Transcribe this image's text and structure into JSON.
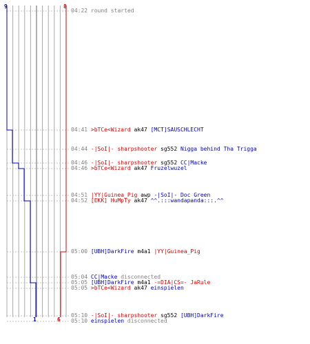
{
  "colors": {
    "t_team": "#0000b0",
    "ct_team": "#d00000",
    "time": "#808080",
    "grid": "#a8a8a8"
  },
  "counts": {
    "blue_top": "9",
    "red_top": "8",
    "blue_bottom": "1",
    "red_bottom": "6"
  },
  "events": [
    {
      "id": "e0",
      "time": "04:22",
      "segments": [
        {
          "text": "round started",
          "color": "gray"
        }
      ]
    },
    {
      "id": "e1",
      "time": "04:41",
      "segments": [
        {
          "text": ">bTCe<Wizard",
          "color": "red"
        },
        {
          "text": " ak47 ",
          "color": "black"
        },
        {
          "text": "[MCT]SAUSCHLECHT",
          "color": "blue"
        }
      ]
    },
    {
      "id": "e2",
      "time": "04:44",
      "segments": [
        {
          "text": "-|SoI|- sharpshooter",
          "color": "red"
        },
        {
          "text": " sg552 ",
          "color": "black"
        },
        {
          "text": "Nigga behind Tha Trigga",
          "color": "blue"
        }
      ]
    },
    {
      "id": "e3",
      "time": "04:46",
      "segments": [
        {
          "text": "-|SoI|- sharpshooter",
          "color": "red"
        },
        {
          "text": " sg552 ",
          "color": "black"
        },
        {
          "text": "CC|Macke",
          "color": "blue"
        }
      ]
    },
    {
      "id": "e4",
      "time": "04:46",
      "segments": [
        {
          "text": ">bTCe<Wizard",
          "color": "red"
        },
        {
          "text": " ak47 ",
          "color": "black"
        },
        {
          "text": "Fruzelwuzel",
          "color": "blue"
        }
      ]
    },
    {
      "id": "e5",
      "time": "04:51",
      "segments": [
        {
          "text": "|YY|Guinea_Pig",
          "color": "red"
        },
        {
          "text": " awp ",
          "color": "black"
        },
        {
          "text": "-|SoI|- Doc Green",
          "color": "blue"
        }
      ]
    },
    {
      "id": "e6",
      "time": "04:52",
      "segments": [
        {
          "text": "[EKK] HuMpTy",
          "color": "red"
        },
        {
          "text": " ak47 ",
          "color": "black"
        },
        {
          "text": "^^.:::wandapanda:::.^^",
          "color": "blue"
        }
      ]
    },
    {
      "id": "e7",
      "time": "05:00",
      "segments": [
        {
          "text": "[UBH]DarkFire",
          "color": "blue"
        },
        {
          "text": " m4a1 ",
          "color": "black"
        },
        {
          "text": "|YY|Guinea_Pig",
          "color": "red"
        }
      ]
    },
    {
      "id": "e8",
      "time": "05:04",
      "segments": [
        {
          "text": "CC|Macke",
          "color": "blue"
        },
        {
          "text": " disconnected",
          "color": "gray"
        }
      ]
    },
    {
      "id": "e9",
      "time": "05:05",
      "segments": [
        {
          "text": "[UBH]DarkFire",
          "color": "blue"
        },
        {
          "text": " m4a1 ",
          "color": "black"
        },
        {
          "text": "-=DIA|CS=- JaRule",
          "color": "red"
        }
      ]
    },
    {
      "id": "e10",
      "time": "05:05",
      "segments": [
        {
          "text": ">bTCe<Wizard",
          "color": "red"
        },
        {
          "text": " ak47 ",
          "color": "black"
        },
        {
          "text": "einspielen",
          "color": "blue"
        }
      ]
    },
    {
      "id": "e11",
      "time": "05:10",
      "segments": [
        {
          "text": "-|SoI|- sharpshooter",
          "color": "red"
        },
        {
          "text": " sg552 ",
          "color": "black"
        },
        {
          "text": "[UBH]DarkFire",
          "color": "blue"
        }
      ]
    },
    {
      "id": "e12",
      "time": "05:10",
      "segments": [
        {
          "text": "einspielen",
          "color": "blue"
        },
        {
          "text": " disconnected",
          "color": "gray"
        }
      ]
    }
  ]
}
